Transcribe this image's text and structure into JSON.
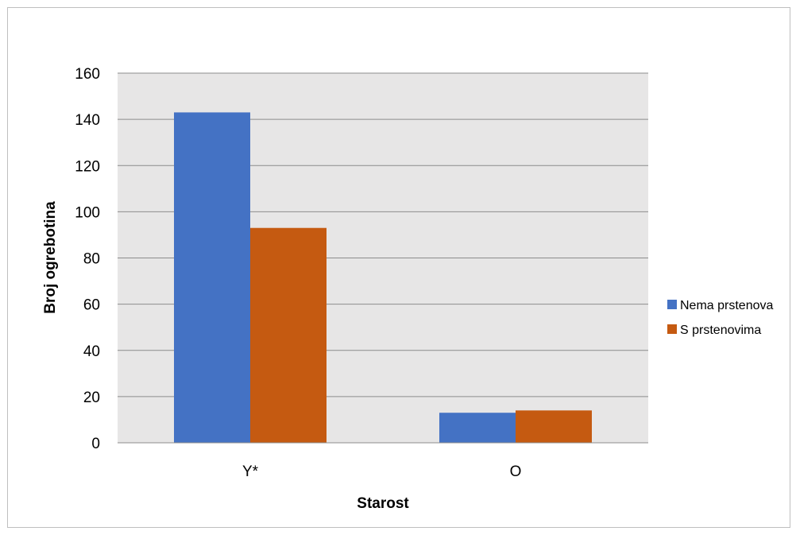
{
  "chart_data": {
    "type": "bar",
    "categories": [
      "Y*",
      "O"
    ],
    "series": [
      {
        "name": "Nema prstenova",
        "values": [
          143,
          13
        ],
        "color": "#4472C4"
      },
      {
        "name": "S prstenovima",
        "values": [
          93,
          14
        ],
        "color": "#C55A11"
      }
    ],
    "xlabel": "Starost",
    "ylabel": "Broj  ogrebotina",
    "ylim": [
      0,
      160
    ],
    "yticks": [
      0,
      20,
      40,
      60,
      80,
      100,
      120,
      140,
      160
    ],
    "grid": true,
    "plot_background": "#E7E6E6",
    "legend_position": "right"
  }
}
